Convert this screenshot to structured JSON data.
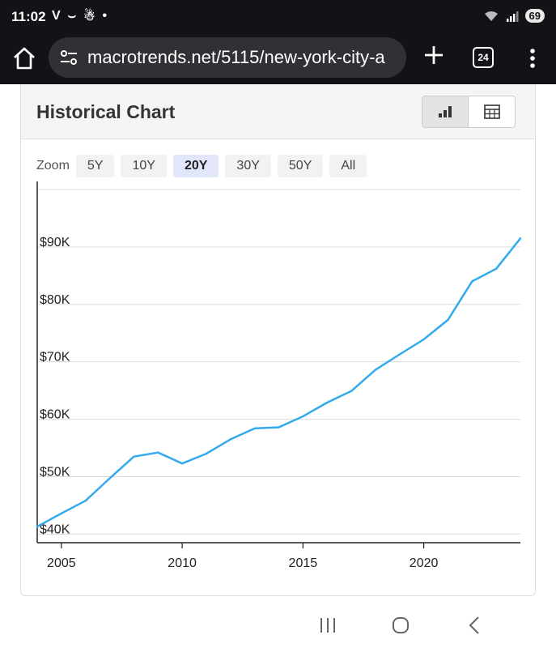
{
  "status_bar": {
    "time": "11:02",
    "left_icons": [
      "V",
      "⌣",
      "☃",
      "•"
    ],
    "battery": "69"
  },
  "browser": {
    "url": "macrotrends.net/5115/new-york-city-a",
    "tab_count": "24"
  },
  "card": {
    "title": "Historical Chart"
  },
  "zoom": {
    "label": "Zoom",
    "options": [
      "5Y",
      "10Y",
      "20Y",
      "30Y",
      "50Y",
      "All"
    ],
    "selected": "20Y"
  },
  "chart_data": {
    "type": "line",
    "title": "",
    "xlabel": "",
    "ylabel": "",
    "x_ticks": [
      "2005",
      "2010",
      "2015",
      "2020"
    ],
    "y_ticks": [
      "$40K",
      "$50K",
      "$60K",
      "$70K",
      "$80K",
      "$90K"
    ],
    "xlim": [
      2004,
      2024
    ],
    "ylim": [
      38500,
      100000
    ],
    "grid": true,
    "color": "#33aaee",
    "series": [
      {
        "x": [
          2004,
          2005,
          2006,
          2007,
          2008,
          2009,
          2010,
          2011,
          2012,
          2013,
          2014,
          2015,
          2016,
          2017,
          2018,
          2019,
          2020,
          2021,
          2022,
          2023,
          2024
        ],
        "values": [
          41300,
          43600,
          45800,
          49700,
          53500,
          54200,
          52300,
          54000,
          56500,
          58400,
          58600,
          60500,
          62900,
          64900,
          68600,
          71300,
          73900,
          77300,
          84000,
          86200,
          91500
        ]
      }
    ]
  },
  "colors": {
    "status_bg": "#121316",
    "url_pill": "#303134",
    "line": "#33aaee",
    "zoom_active": "#e1e6f8"
  }
}
